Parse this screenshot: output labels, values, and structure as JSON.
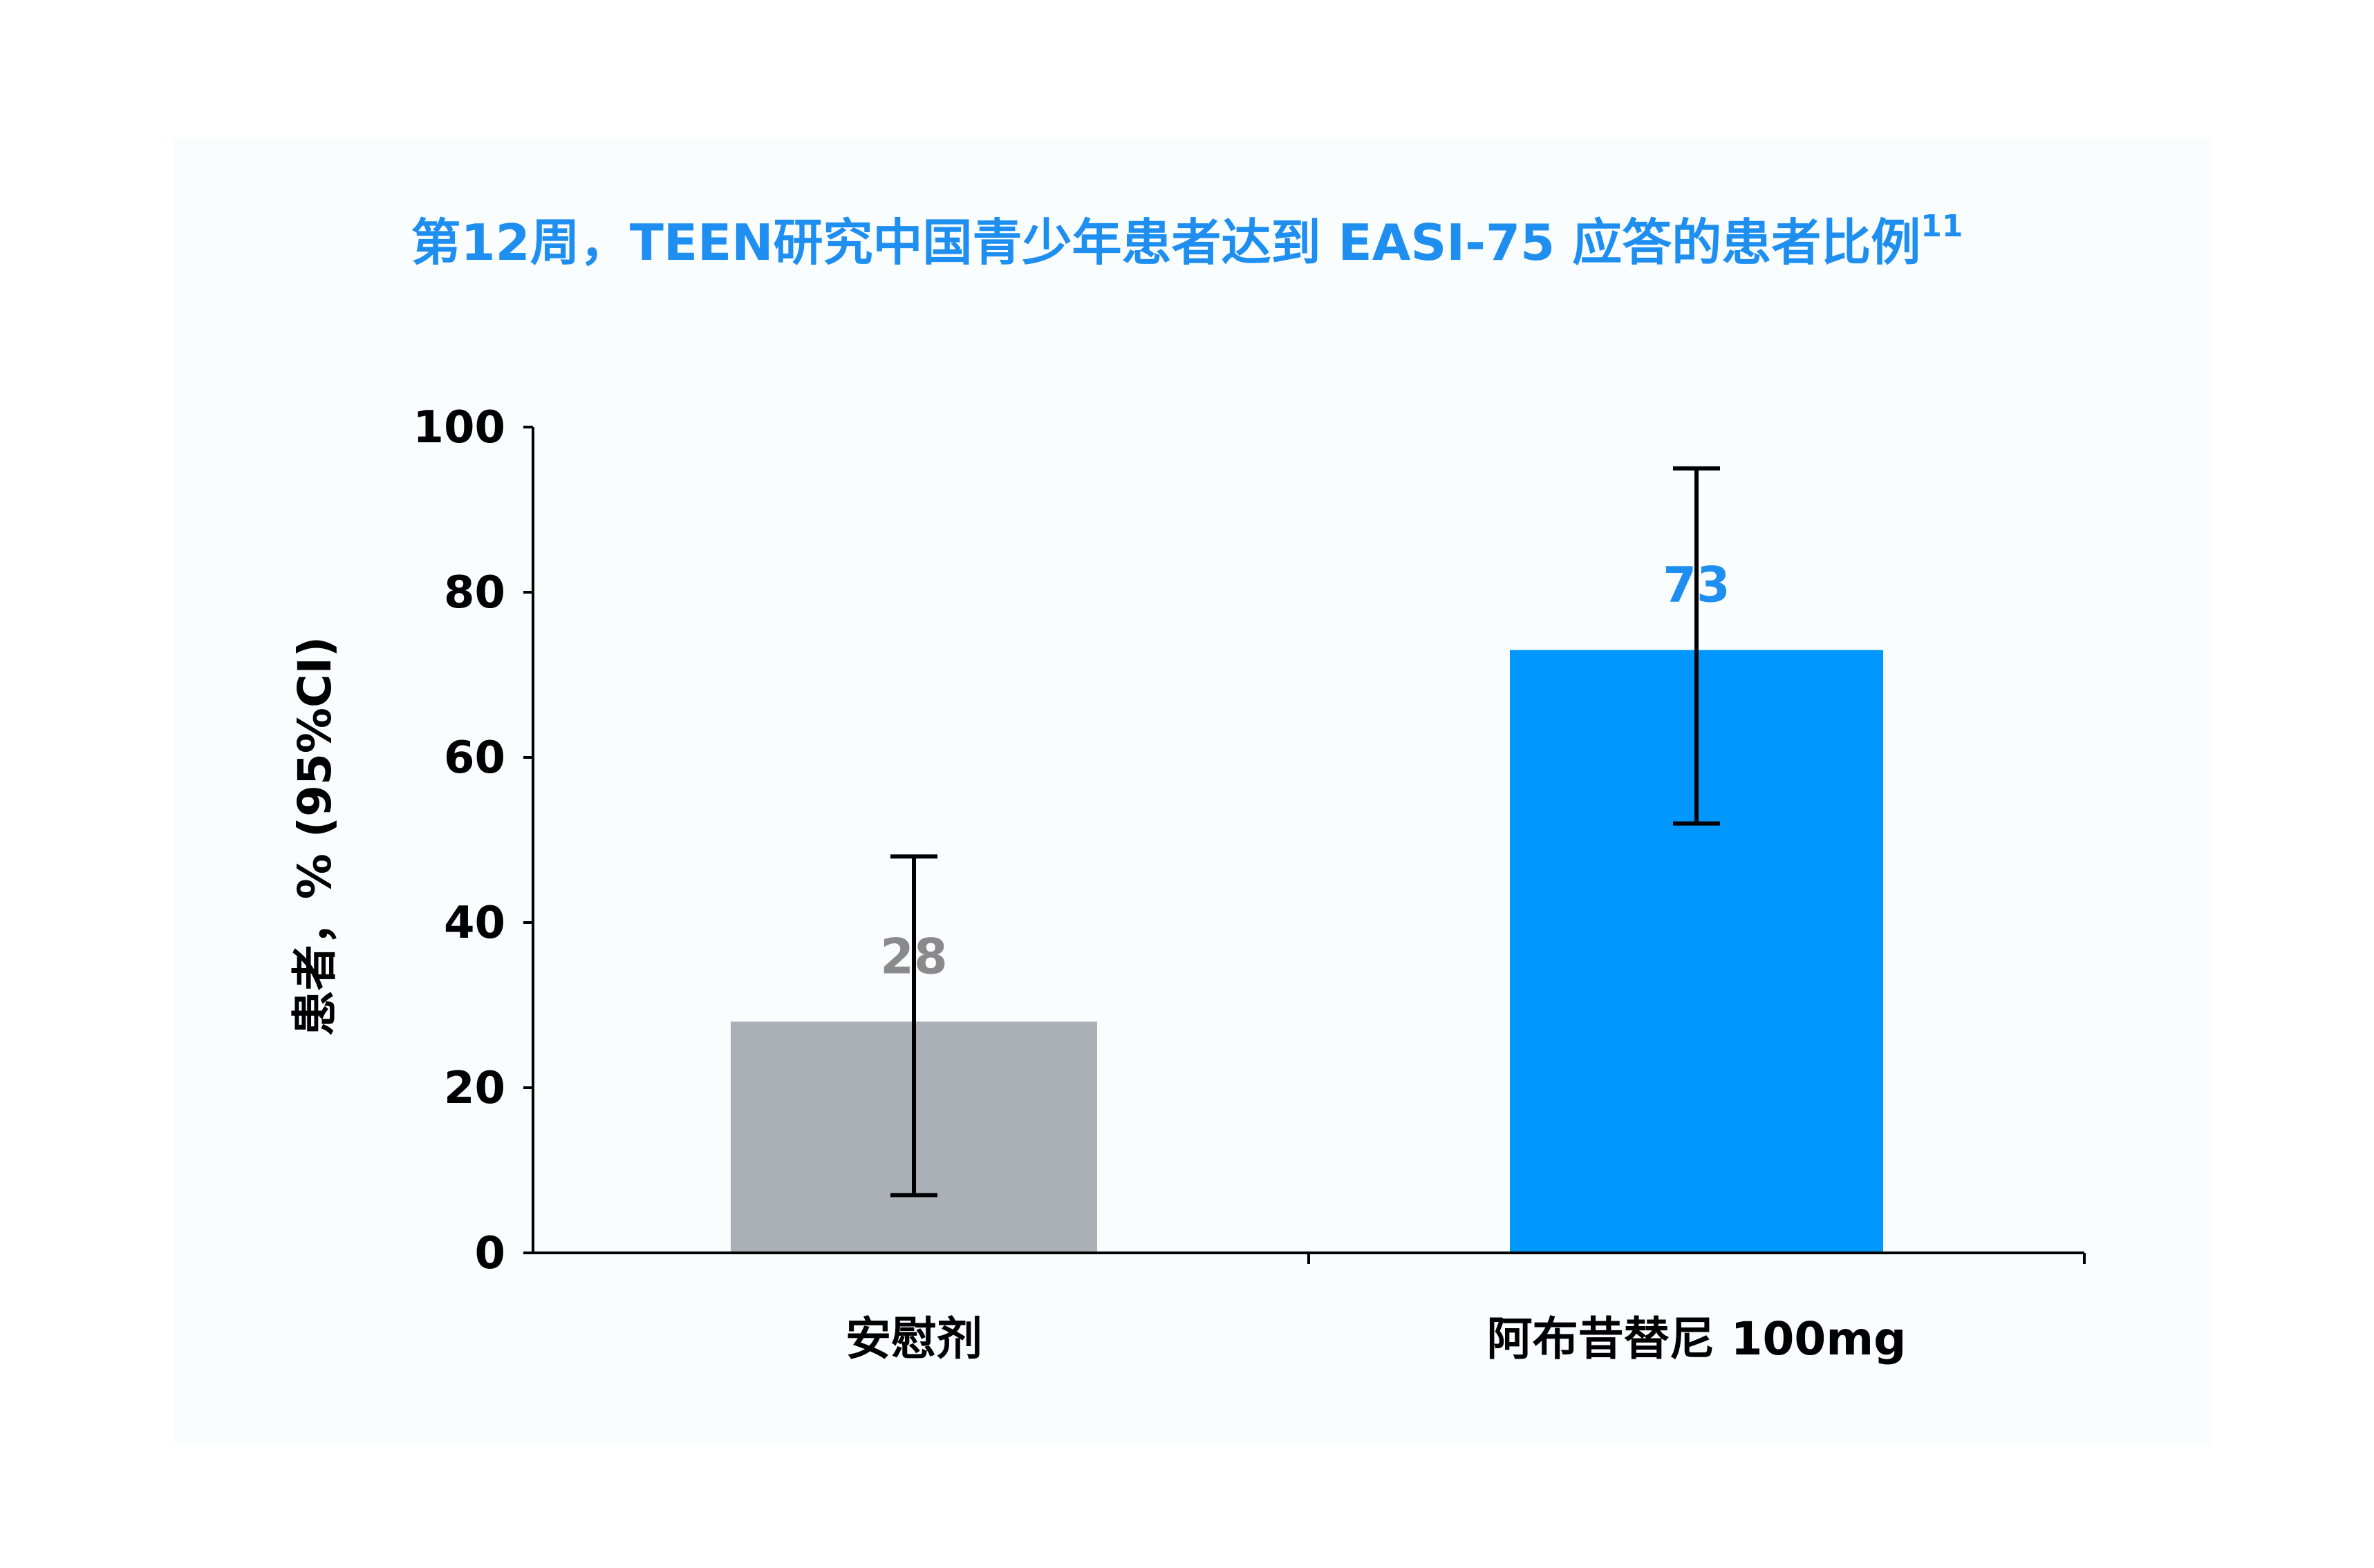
{
  "colors": {
    "title": "#1e8ff0",
    "placebo_bar": "#abb0b7",
    "drug_bar": "#0098ff",
    "placebo_label": "#8a8a8a",
    "drug_label": "#1e8ff0",
    "axis": "#000000",
    "background": "#fafdfe"
  },
  "chart_data": {
    "type": "bar",
    "title": "第12周，TEEN研究中国青少年患者达到 EASI-75 应答的患者比例",
    "title_superscript": "11",
    "xlabel": "",
    "ylabel": "患者，% (95%CI)",
    "ylim": [
      0,
      100
    ],
    "yticks": [
      "0",
      "20",
      "40",
      "60",
      "80",
      "100"
    ],
    "categories": [
      "安慰剂",
      "阿布昔替尼 100mg"
    ],
    "values": [
      28,
      73
    ],
    "value_labels": [
      "28",
      "73"
    ],
    "ci_lower": [
      7,
      52
    ],
    "ci_upper": [
      48,
      95
    ],
    "grid": false,
    "legend": "none"
  }
}
